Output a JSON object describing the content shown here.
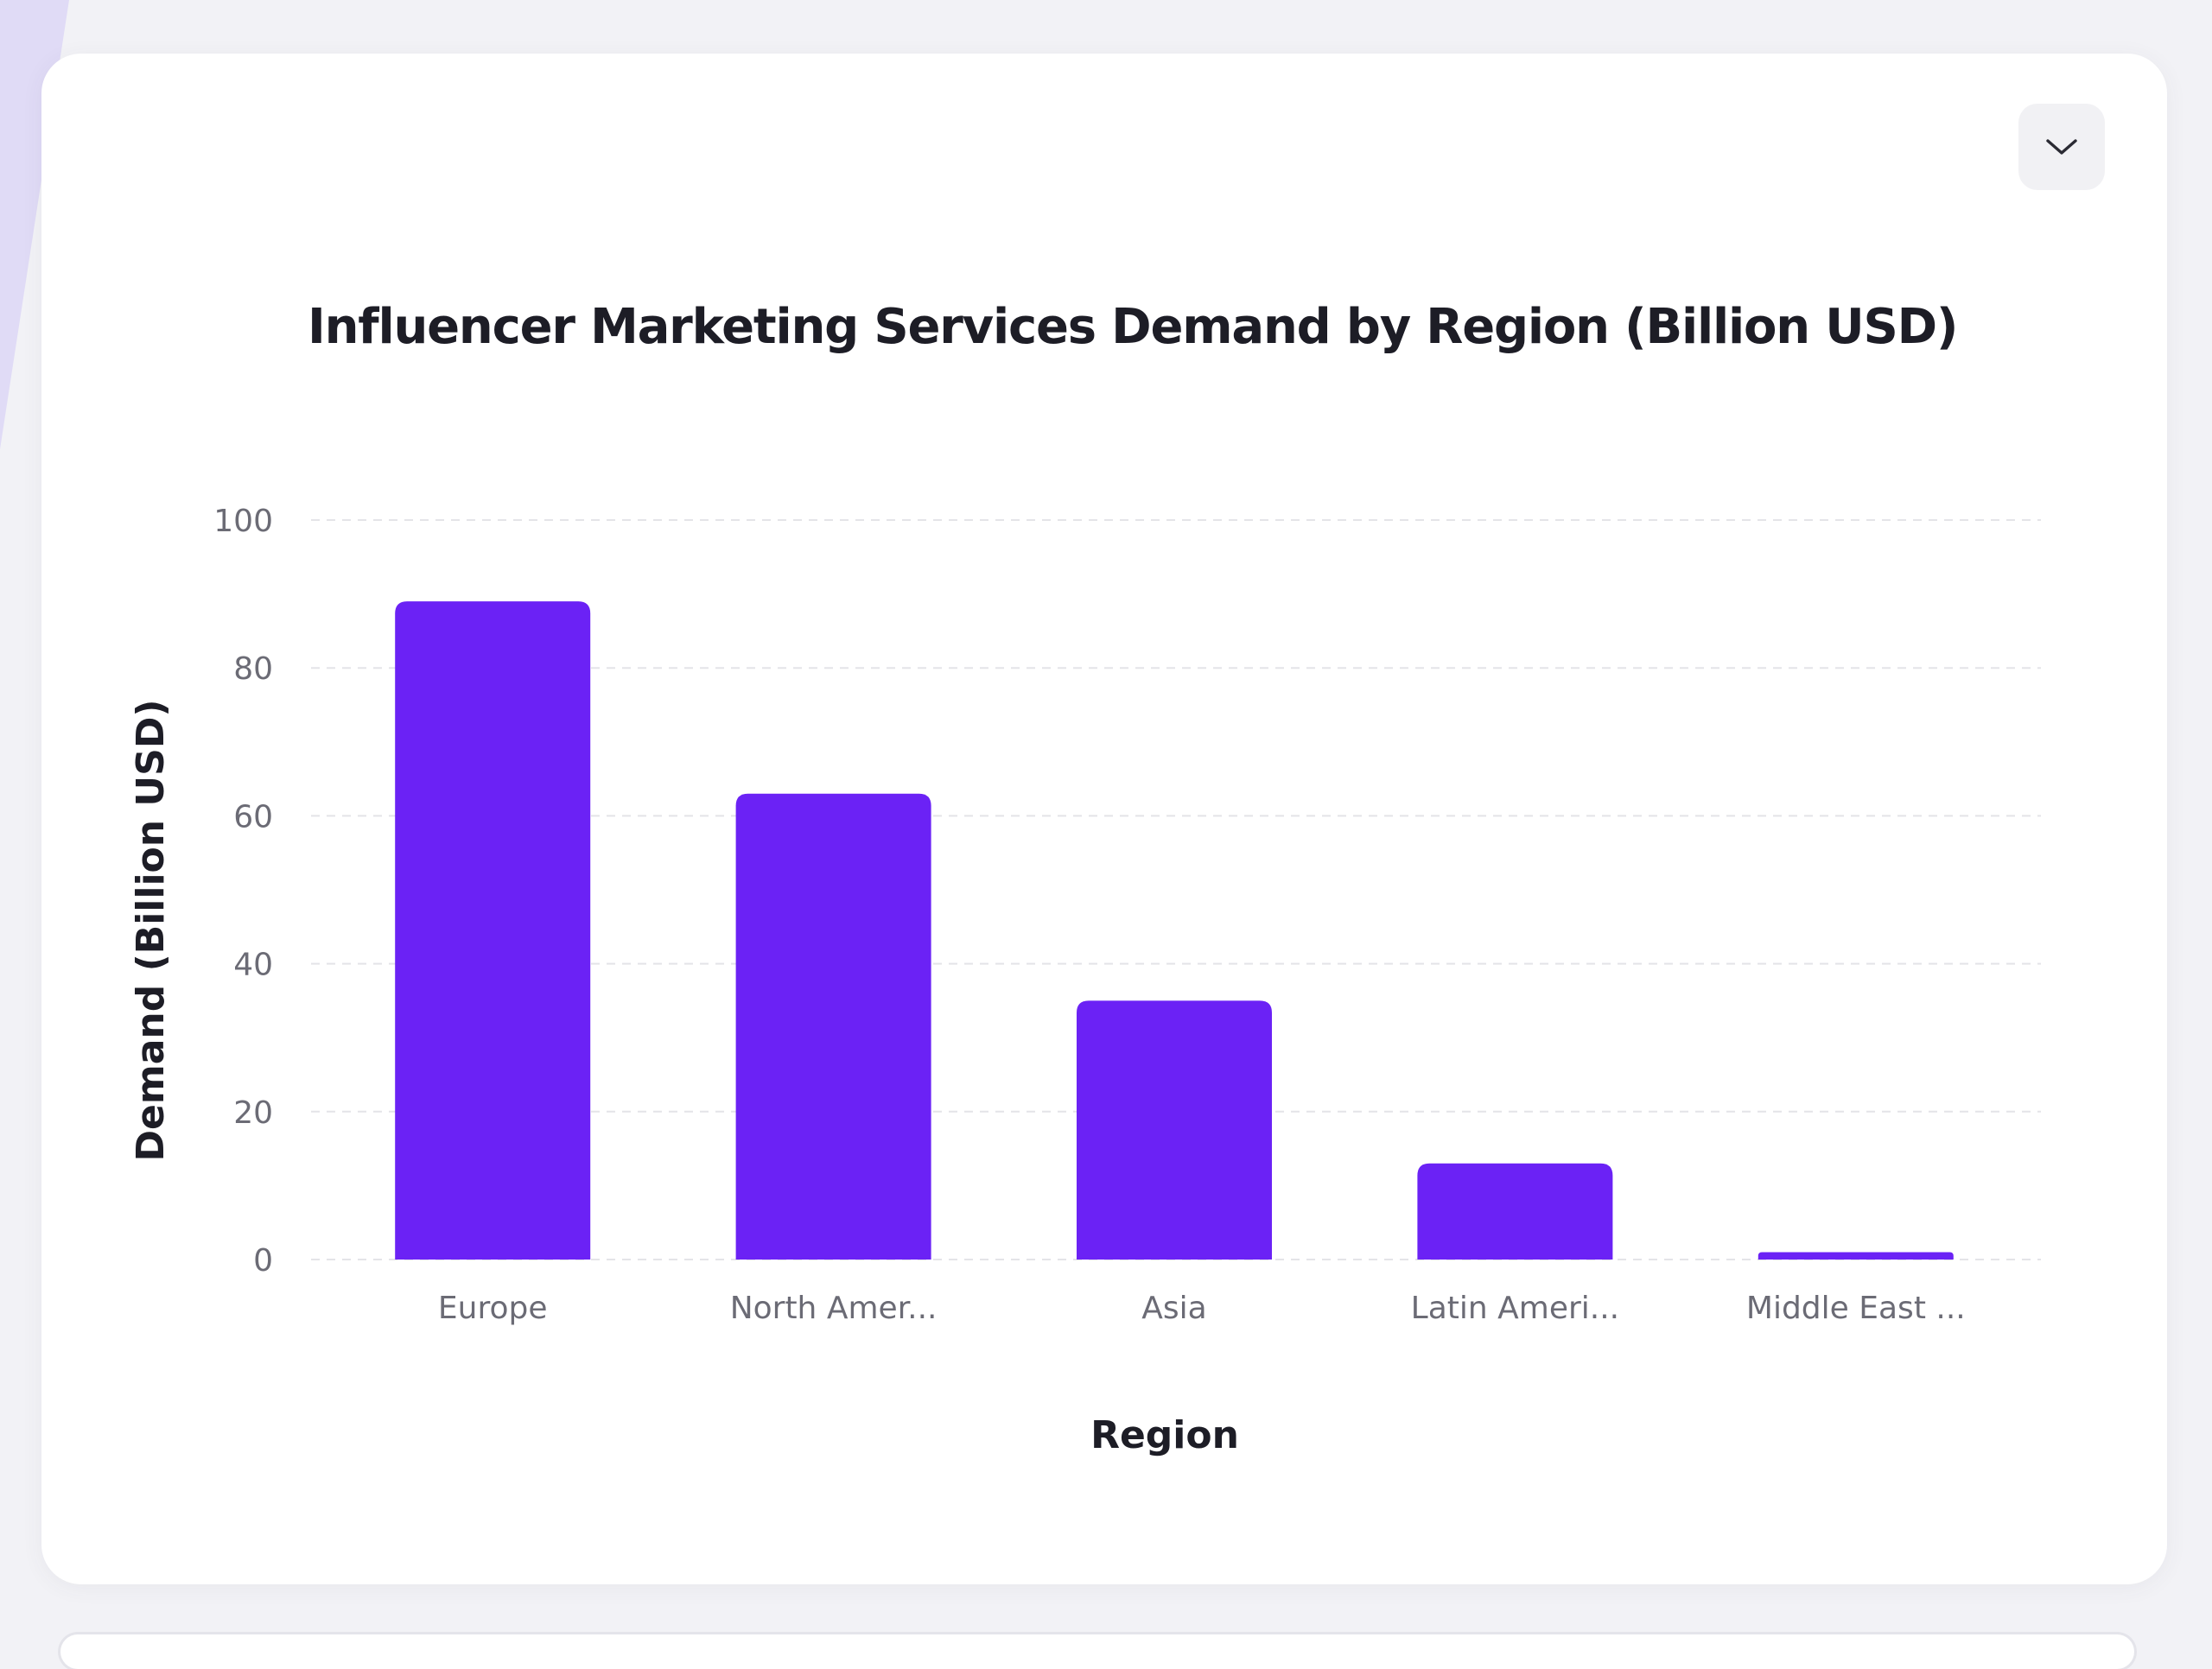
{
  "colors": {
    "bar": "#6b22f5",
    "grid": "#e4e4e8"
  },
  "toolbar": {
    "dropdown_icon": "chevron-down-icon"
  },
  "chart_data": {
    "type": "bar",
    "title": "Influencer Marketing Services Demand by Region (Billion USD)",
    "xlabel": "Region",
    "ylabel": "Demand (Billion USD)",
    "categories": [
      "Europe",
      "North Amer...",
      "Asia",
      "Latin Ameri...",
      "Middle East ..."
    ],
    "values": [
      89,
      63,
      35,
      13,
      1
    ],
    "ylim": [
      0,
      100
    ],
    "yticks": [
      "0",
      "20",
      "40",
      "60",
      "80",
      "100"
    ],
    "grid": true
  }
}
